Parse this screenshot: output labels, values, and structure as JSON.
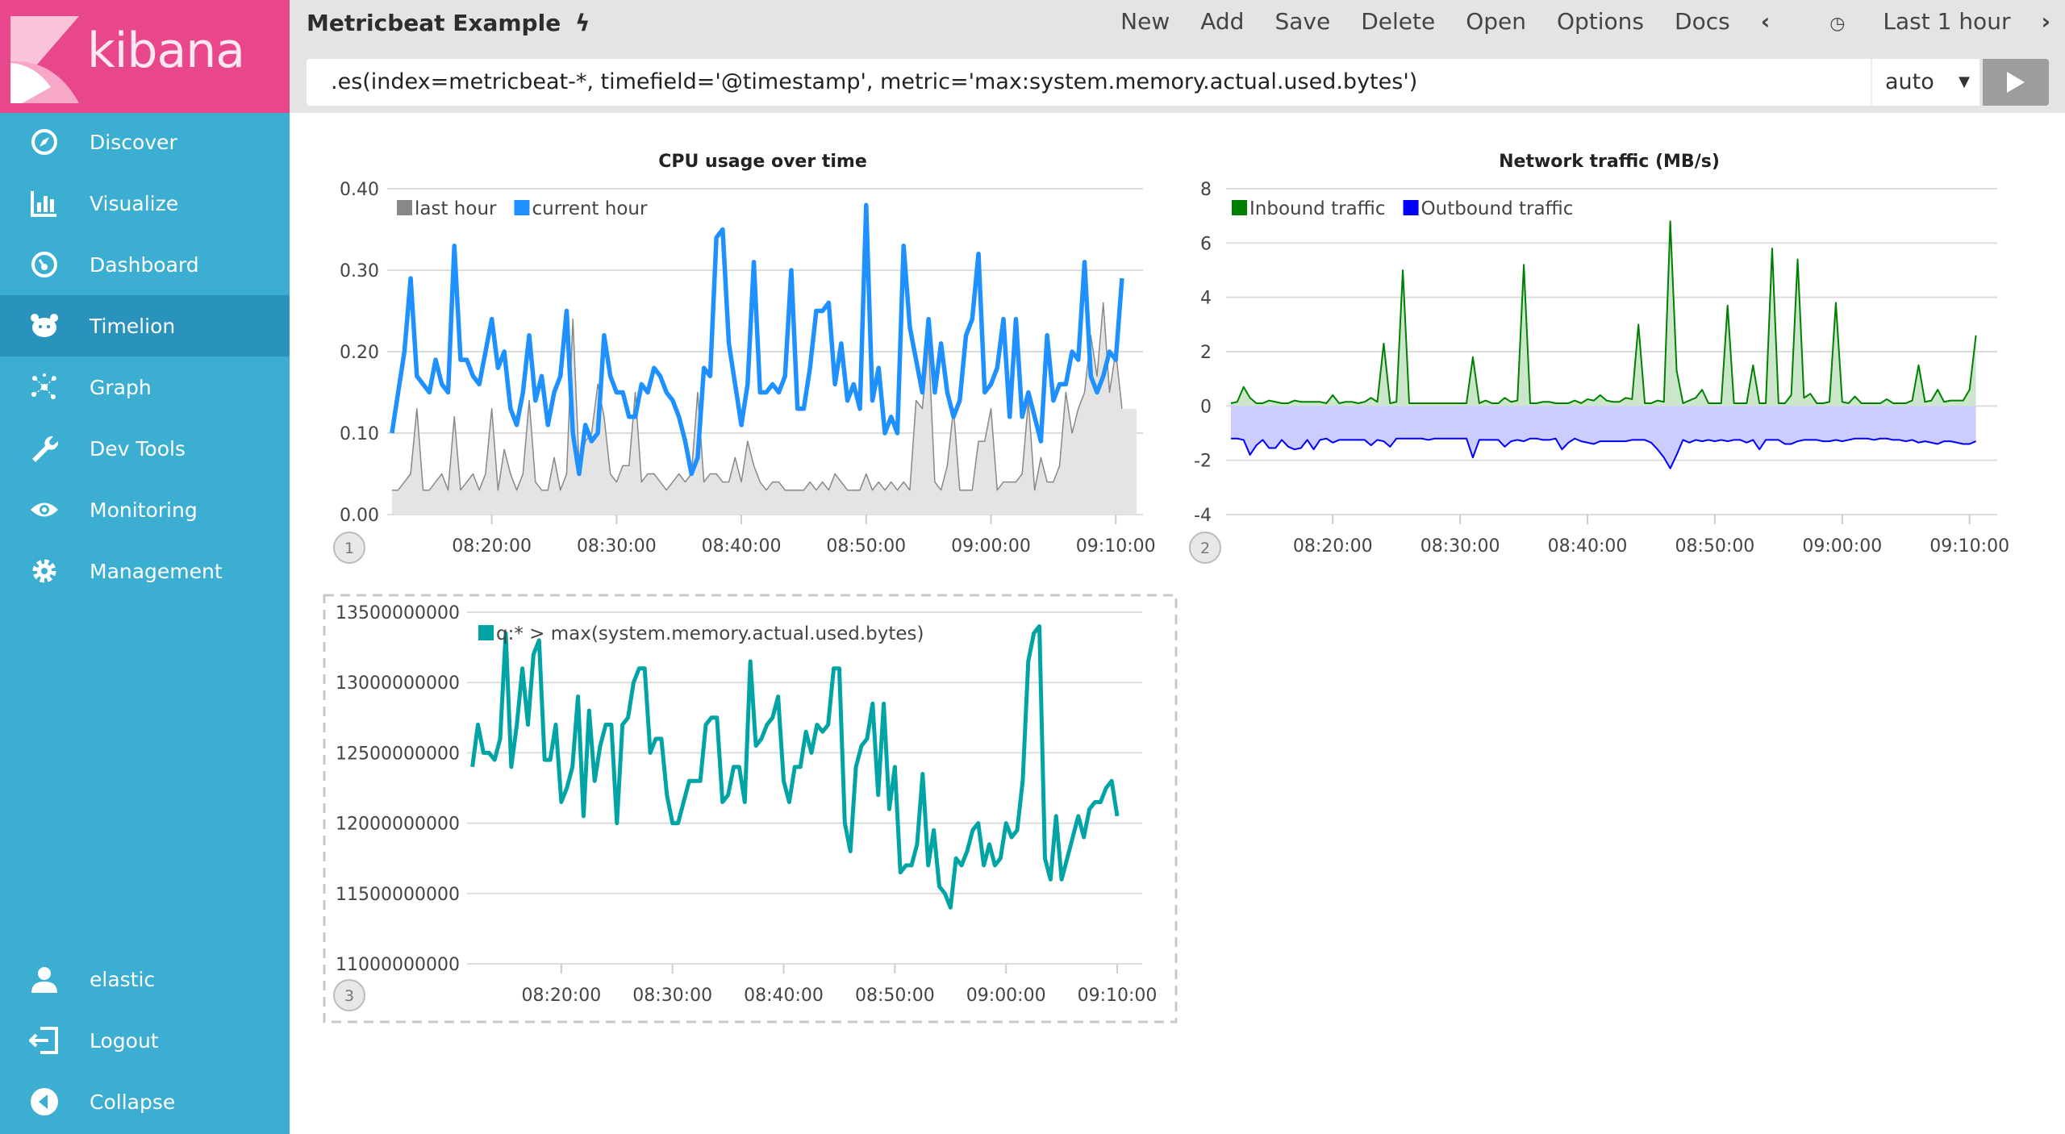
{
  "brand": {
    "name": "kibana",
    "color": "#e8488b"
  },
  "sidebar": {
    "items": [
      {
        "label": "Discover",
        "icon": "compass-icon"
      },
      {
        "label": "Visualize",
        "icon": "bar-chart-icon"
      },
      {
        "label": "Dashboard",
        "icon": "dashboard-gauge-icon"
      },
      {
        "label": "Timelion",
        "icon": "timelion-bear-icon",
        "active": true
      },
      {
        "label": "Graph",
        "icon": "graph-nodes-icon"
      },
      {
        "label": "Dev Tools",
        "icon": "wrench-icon"
      },
      {
        "label": "Monitoring",
        "icon": "eye-icon"
      },
      {
        "label": "Management",
        "icon": "gear-icon"
      }
    ],
    "bottom": [
      {
        "label": "elastic",
        "icon": "user-icon"
      },
      {
        "label": "Logout",
        "icon": "logout-icon"
      },
      {
        "label": "Collapse",
        "icon": "collapse-arrow-icon"
      }
    ],
    "color": "#3caed2",
    "active_color": "#2a93bb"
  },
  "header": {
    "title": "Metricbeat Example",
    "title_icon": "lightning-bolt-icon",
    "menu": [
      "New",
      "Add",
      "Save",
      "Delete",
      "Open",
      "Options",
      "Docs"
    ],
    "time_range": "Last 1 hour",
    "query": ".es(index=metricbeat-*, timefield='@timestamp', metric='max:system.memory.actual.used.bytes')",
    "interval": "auto"
  },
  "chart_data": [
    {
      "panel": "1",
      "type": "area",
      "title": "CPU usage over time",
      "xlim": [
        "08:11:45",
        "09:11:40"
      ],
      "x_start": "08:12:00",
      "x_step_seconds": 30,
      "x_ticks": [
        "08:20:00",
        "08:30:00",
        "08:40:00",
        "08:50:00",
        "09:00:00",
        "09:10:00"
      ],
      "ylim": [
        0,
        0.4
      ],
      "y_ticks": [
        "0.00",
        "0.10",
        "0.20",
        "0.30",
        "0.40"
      ],
      "grid": true,
      "legend": "top-left",
      "series": [
        {
          "name": "last hour",
          "color": "#888888",
          "fill": "#e4e4e4",
          "style": "area",
          "values": [
            0.03,
            0.03,
            0.04,
            0.05,
            0.13,
            0.03,
            0.03,
            0.04,
            0.05,
            0.03,
            0.12,
            0.03,
            0.04,
            0.05,
            0.03,
            0.05,
            0.13,
            0.03,
            0.08,
            0.05,
            0.03,
            0.05,
            0.14,
            0.04,
            0.03,
            0.03,
            0.07,
            0.03,
            0.05,
            0.24,
            0.06,
            0.09,
            0.1,
            0.16,
            0.12,
            0.05,
            0.04,
            0.06,
            0.06,
            0.15,
            0.04,
            0.05,
            0.05,
            0.04,
            0.03,
            0.04,
            0.05,
            0.04,
            0.05,
            0.15,
            0.04,
            0.05,
            0.05,
            0.04,
            0.04,
            0.07,
            0.04,
            0.09,
            0.06,
            0.04,
            0.03,
            0.04,
            0.04,
            0.03,
            0.03,
            0.03,
            0.03,
            0.04,
            0.03,
            0.04,
            0.03,
            0.05,
            0.04,
            0.03,
            0.03,
            0.03,
            0.05,
            0.03,
            0.04,
            0.03,
            0.04,
            0.03,
            0.04,
            0.03,
            0.14,
            0.13,
            0.21,
            0.04,
            0.03,
            0.06,
            0.13,
            0.03,
            0.03,
            0.03,
            0.09,
            0.09,
            0.13,
            0.03,
            0.04,
            0.04,
            0.04,
            0.05,
            0.14,
            0.03,
            0.07,
            0.04,
            0.04,
            0.06,
            0.15,
            0.1,
            0.13,
            0.15,
            0.22,
            0.17,
            0.26,
            0.15,
            0.2,
            0.13
          ]
        },
        {
          "name": "current hour",
          "color": "#1e90ff",
          "style": "line",
          "values": [
            0.1,
            0.15,
            0.2,
            0.29,
            0.17,
            0.16,
            0.15,
            0.19,
            0.16,
            0.15,
            0.33,
            0.19,
            0.19,
            0.17,
            0.16,
            0.2,
            0.24,
            0.18,
            0.2,
            0.13,
            0.11,
            0.15,
            0.22,
            0.14,
            0.17,
            0.11,
            0.15,
            0.17,
            0.25,
            0.1,
            0.05,
            0.11,
            0.09,
            0.1,
            0.22,
            0.17,
            0.15,
            0.15,
            0.12,
            0.12,
            0.16,
            0.15,
            0.18,
            0.17,
            0.15,
            0.14,
            0.12,
            0.09,
            0.05,
            0.07,
            0.18,
            0.17,
            0.34,
            0.35,
            0.21,
            0.16,
            0.11,
            0.16,
            0.31,
            0.15,
            0.15,
            0.16,
            0.15,
            0.17,
            0.3,
            0.13,
            0.13,
            0.18,
            0.25,
            0.25,
            0.26,
            0.16,
            0.21,
            0.14,
            0.16,
            0.13,
            0.38,
            0.14,
            0.18,
            0.1,
            0.12,
            0.1,
            0.33,
            0.23,
            0.19,
            0.15,
            0.24,
            0.15,
            0.21,
            0.15,
            0.12,
            0.14,
            0.22,
            0.24,
            0.32,
            0.15,
            0.16,
            0.18,
            0.24,
            0.12,
            0.24,
            0.12,
            0.15,
            0.12,
            0.09,
            0.22,
            0.14,
            0.16,
            0.16,
            0.2,
            0.19,
            0.31,
            0.17,
            0.15,
            0.17,
            0.2,
            0.19,
            0.29
          ]
        }
      ]
    },
    {
      "panel": "2",
      "type": "area",
      "title": "Network traffic (MB/s)",
      "xlim": [
        "08:11:45",
        "09:11:40"
      ],
      "x_start": "08:12:00",
      "x_step_seconds": 30,
      "x_ticks": [
        "08:20:00",
        "08:30:00",
        "08:40:00",
        "08:50:00",
        "09:00:00",
        "09:10:00"
      ],
      "ylim": [
        -4,
        8
      ],
      "y_ticks": [
        "-4",
        "-2",
        "0",
        "2",
        "4",
        "6",
        "8"
      ],
      "grid": true,
      "legend": "top-left",
      "series": [
        {
          "name": "Inbound traffic",
          "color": "#008000",
          "fill": "#cce6cc",
          "style": "area",
          "values": [
            0.1,
            0.15,
            0.7,
            0.3,
            0.1,
            0.1,
            0.2,
            0.15,
            0.1,
            0.1,
            0.2,
            0.15,
            0.15,
            0.15,
            0.15,
            0.1,
            0.4,
            0.1,
            0.15,
            0.15,
            0.1,
            0.15,
            0.3,
            0.15,
            2.3,
            0.1,
            0.15,
            5.0,
            0.1,
            0.1,
            0.1,
            0.1,
            0.1,
            0.1,
            0.1,
            0.1,
            0.1,
            0.1,
            1.8,
            0.1,
            0.2,
            0.1,
            0.1,
            0.3,
            0.15,
            0.2,
            5.2,
            0.1,
            0.1,
            0.15,
            0.15,
            0.1,
            0.1,
            0.1,
            0.2,
            0.1,
            0.25,
            0.2,
            0.4,
            0.2,
            0.15,
            0.15,
            0.3,
            0.25,
            3.0,
            0.1,
            0.1,
            0.2,
            0.15,
            6.8,
            1.3,
            0.1,
            0.2,
            0.3,
            0.6,
            0.1,
            0.1,
            0.1,
            3.7,
            0.1,
            0.1,
            0.1,
            1.5,
            0.1,
            0.1,
            5.8,
            0.1,
            0.1,
            0.4,
            5.4,
            0.3,
            0.45,
            0.1,
            0.1,
            0.15,
            3.8,
            0.15,
            0.1,
            0.35,
            0.1,
            0.1,
            0.1,
            0.1,
            0.25,
            0.1,
            0.1,
            0.1,
            0.2,
            1.5,
            0.15,
            0.2,
            0.6,
            0.15,
            0.2,
            0.2,
            0.2,
            0.6,
            2.6
          ]
        },
        {
          "name": "Outbound traffic",
          "color": "#0000ff",
          "fill": "#ccccff",
          "style": "area",
          "values": [
            -1.2,
            -1.2,
            -1.25,
            -1.8,
            -1.45,
            -1.25,
            -1.55,
            -1.55,
            -1.25,
            -1.5,
            -1.6,
            -1.55,
            -1.25,
            -1.6,
            -1.25,
            -1.2,
            -1.35,
            -1.25,
            -1.25,
            -1.25,
            -1.25,
            -1.25,
            -1.45,
            -1.25,
            -1.3,
            -1.5,
            -1.2,
            -1.2,
            -1.2,
            -1.2,
            -1.2,
            -1.25,
            -1.2,
            -1.2,
            -1.2,
            -1.2,
            -1.2,
            -1.2,
            -1.9,
            -1.25,
            -1.25,
            -1.25,
            -1.25,
            -1.5,
            -1.3,
            -1.25,
            -1.3,
            -1.2,
            -1.2,
            -1.25,
            -1.25,
            -1.2,
            -1.6,
            -1.35,
            -1.2,
            -1.3,
            -1.35,
            -1.4,
            -1.3,
            -1.3,
            -1.3,
            -1.3,
            -1.3,
            -1.25,
            -1.25,
            -1.25,
            -1.35,
            -1.6,
            -1.9,
            -2.3,
            -1.8,
            -1.25,
            -1.35,
            -1.25,
            -1.3,
            -1.25,
            -1.3,
            -1.25,
            -1.3,
            -1.25,
            -1.25,
            -1.35,
            -1.25,
            -1.6,
            -1.25,
            -1.25,
            -1.25,
            -1.4,
            -1.4,
            -1.3,
            -1.25,
            -1.25,
            -1.25,
            -1.3,
            -1.3,
            -1.25,
            -1.3,
            -1.25,
            -1.2,
            -1.2,
            -1.2,
            -1.25,
            -1.2,
            -1.2,
            -1.25,
            -1.25,
            -1.3,
            -1.25,
            -1.35,
            -1.3,
            -1.35,
            -1.4,
            -1.3,
            -1.3,
            -1.35,
            -1.4,
            -1.4,
            -1.3
          ]
        }
      ]
    },
    {
      "panel": "3",
      "type": "line",
      "title": "",
      "selected": true,
      "xlim": [
        "08:11:40",
        "09:11:40"
      ],
      "x_start": "08:12:00",
      "x_step_seconds": 30,
      "x_ticks": [
        "08:20:00",
        "08:30:00",
        "08:40:00",
        "08:50:00",
        "09:00:00",
        "09:10:00"
      ],
      "ylim": [
        11000000000,
        13500000000
      ],
      "y_ticks": [
        "11000000000",
        "11500000000",
        "12000000000",
        "12500000000",
        "13000000000",
        "13500000000"
      ],
      "grid": true,
      "legend": "top-left",
      "series": [
        {
          "name": "q:* > max(system.memory.actual.used.bytes)",
          "color": "#01a4a4",
          "style": "line",
          "values": [
            12400000000.0,
            12700000000.0,
            12500000000.0,
            12500000000.0,
            12450000000.0,
            12600000000.0,
            13350000000.0,
            12400000000.0,
            12700000000.0,
            13100000000.0,
            12700000000.0,
            13200000000.0,
            13300000000.0,
            12450000000.0,
            12450000000.0,
            12700000000.0,
            12150000000.0,
            12250000000.0,
            12400000000.0,
            12900000000.0,
            12050000000.0,
            12800000000.0,
            12300000000.0,
            12550000000.0,
            12700000000.0,
            12700000000.0,
            12000000000.0,
            12700000000.0,
            12750000000.0,
            13000000000.0,
            13100000000.0,
            13100000000.0,
            12500000000.0,
            12600000000.0,
            12600000000.0,
            12200000000.0,
            12000000000.0,
            12000000000.0,
            12150000000.0,
            12300000000.0,
            12300000000.0,
            12300000000.0,
            12700000000.0,
            12750000000.0,
            12750000000.0,
            12150000000.0,
            12200000000.0,
            12400000000.0,
            12400000000.0,
            12150000000.0,
            13150000000.0,
            12550000000.0,
            12600000000.0,
            12700000000.0,
            12750000000.0,
            12900000000.0,
            12300000000.0,
            12150000000.0,
            12400000000.0,
            12400000000.0,
            12650000000.0,
            12500000000.0,
            12700000000.0,
            12650000000.0,
            12700000000.0,
            13100000000.0,
            13100000000.0,
            12000000000.0,
            11800000000.0,
            12400000000.0,
            12550000000.0,
            12600000000.0,
            12850000000.0,
            12200000000.0,
            12850000000.0,
            12100000000.0,
            12400000000.0,
            11650000000.0,
            11700000000.0,
            11700000000.0,
            11850000000.0,
            12350000000.0,
            11700000000.0,
            11950000000.0,
            11550000000.0,
            11500000000.0,
            11400000000.0,
            11750000000.0,
            11700000000.0,
            11800000000.0,
            11950000000.0,
            12000000000.0,
            11700000000.0,
            11850000000.0,
            11700000000.0,
            11750000000.0,
            12000000000.0,
            11900000000.0,
            11950000000.0,
            12300000000.0,
            13150000000.0,
            13350000000.0,
            13400000000.0,
            11750000000.0,
            11600000000.0,
            12050000000.0,
            11600000000.0,
            11750000000.0,
            11900000000.0,
            12050000000.0,
            11900000000.0,
            12100000000.0,
            12150000000.0,
            12150000000.0,
            12250000000.0,
            12300000000.0,
            12050000000.0
          ]
        }
      ]
    }
  ]
}
